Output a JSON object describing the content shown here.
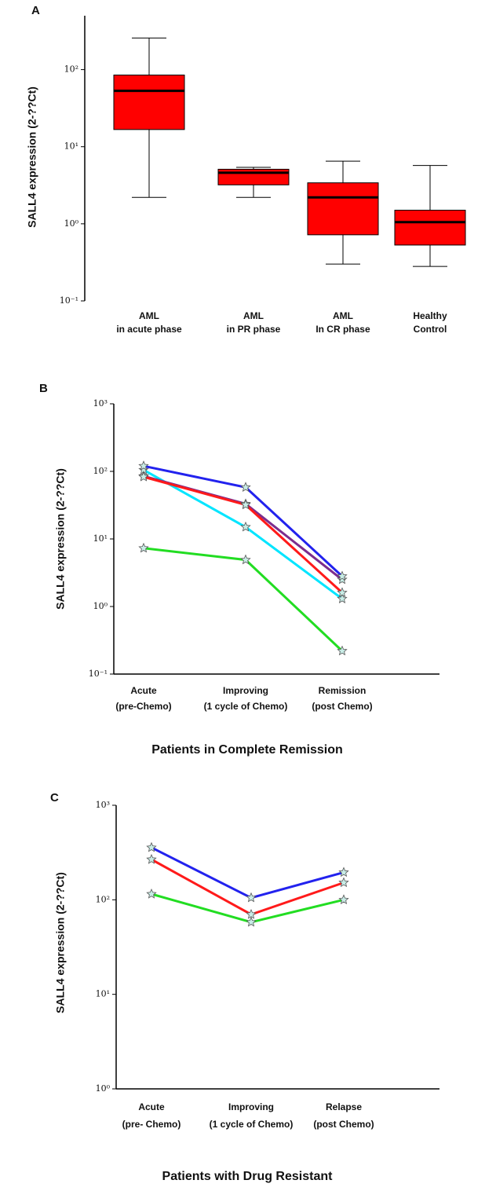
{
  "charts": [
    {
      "panel": "A",
      "type": "box",
      "ylabel": "SALL4 expression (2-??Ct)",
      "color": "#ff0000",
      "categories": [
        [
          "AML",
          "in  acute phase"
        ],
        [
          "AML",
          "in PR phase"
        ],
        [
          "AML",
          "In CR phase"
        ],
        [
          "Healthy",
          "Control"
        ]
      ],
      "min": [
        2.2,
        2.2,
        0.3,
        0.28
      ],
      "q1": [
        16.7,
        3.2,
        0.72,
        0.53
      ],
      "median": [
        53,
        4.6,
        2.2,
        1.05
      ],
      "q3": [
        85,
        5.1,
        3.4,
        1.5
      ],
      "max": [
        257,
        5.4,
        6.5,
        5.7
      ],
      "log_scale": true,
      "ylim": [
        0.1,
        500
      ],
      "yticks": [
        {
          "value": 0.1,
          "label": "10⁻¹"
        },
        {
          "value": 1,
          "label": "10⁰"
        },
        {
          "value": 10,
          "label": "10¹"
        },
        {
          "value": 100,
          "label": "10²"
        }
      ]
    },
    {
      "panel": "B",
      "type": "line",
      "ylabel": "SALL4 expression (2-??Ct)",
      "xlabel": "Patients in Complete Remission",
      "categories": [
        [
          "Acute",
          "(pre-Chemo)"
        ],
        [
          "Improving",
          "(1 cycle of Chemo)"
        ],
        [
          "Remission",
          "(post Chemo)"
        ]
      ],
      "series": [
        {
          "color": "#00e5ff",
          "values": [
            105,
            15,
            1.3
          ]
        },
        {
          "color": "#22dd22",
          "values": [
            7.3,
            4.9,
            0.22
          ]
        },
        {
          "color": "#7b2d8e",
          "values": [
            85,
            33,
            2.5
          ]
        },
        {
          "color": "#ff1a1a",
          "values": [
            83,
            32,
            1.6
          ]
        },
        {
          "color": "#2222ee",
          "values": [
            120,
            58,
            2.8
          ]
        }
      ],
      "log_scale": true,
      "ylim": [
        0.1,
        1000
      ],
      "yticks": [
        {
          "value": 0.1,
          "label": "10⁻¹"
        },
        {
          "value": 1,
          "label": "10⁰"
        },
        {
          "value": 10,
          "label": "10¹"
        },
        {
          "value": 100,
          "label": "10²"
        },
        {
          "value": 1000,
          "label": "10³"
        }
      ]
    },
    {
      "panel": "C",
      "type": "line",
      "ylabel": "SALL4 expression (2-??Ct)",
      "xlabel": "Patients with Drug Resistant",
      "categories": [
        [
          "Acute",
          "(pre- Chemo)"
        ],
        [
          "Improving",
          "(1 cycle of Chemo)"
        ],
        [
          "Relapse",
          "(post  Chemo)"
        ]
      ],
      "series": [
        {
          "color": "#22dd22",
          "values": [
            115,
            58,
            100
          ]
        },
        {
          "color": "#ff1a1a",
          "values": [
            267,
            70,
            152
          ]
        },
        {
          "color": "#2222ee",
          "values": [
            357,
            105,
            195
          ]
        }
      ],
      "log_scale": true,
      "ylim": [
        1,
        1000
      ],
      "yticks": [
        {
          "value": 1,
          "label": "10⁰"
        },
        {
          "value": 10,
          "label": "10¹"
        },
        {
          "value": 100,
          "label": "10²"
        },
        {
          "value": 1000,
          "label": "10³"
        }
      ]
    }
  ]
}
